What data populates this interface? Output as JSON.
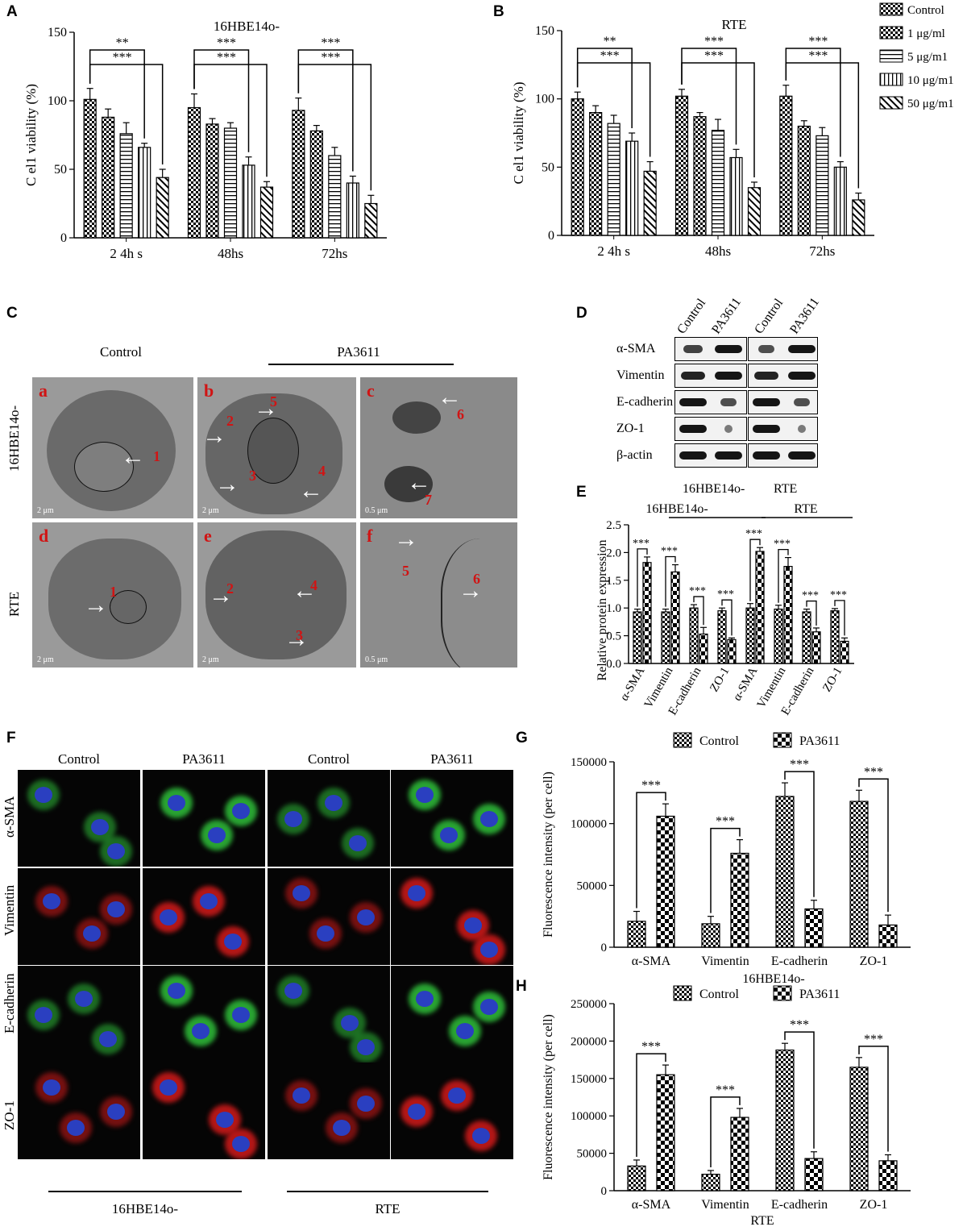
{
  "panels": {
    "A": "A",
    "B": "B",
    "C": "C",
    "D": "D",
    "E": "E",
    "F": "F",
    "G": "G",
    "H": "H"
  },
  "colors": {
    "em_dark": "#5f5f5f",
    "em_light": "#9a9a9a",
    "label_red": "#d01414",
    "if_green": "#2fbf3a",
    "if_red": "#d21a1a",
    "if_blue": "#2a3fc0"
  },
  "sig": "***",
  "sig2": "**",
  "legend_ab": [
    "Control",
    "1 μg/ml",
    "5 μg/m1",
    "10 μg/m1",
    "50 μg/m1"
  ],
  "legend_gh": [
    "Control",
    "PA3611"
  ],
  "chart_data": [
    {
      "id": "A",
      "type": "bar",
      "title": "16HBE14o-",
      "ylabel": "C el1 viability (%)",
      "xlabel": "",
      "categories": [
        "2 4h s",
        "48hs",
        "72hs"
      ],
      "ylim": [
        0,
        150
      ],
      "yticks": [
        0,
        50,
        100,
        150
      ],
      "series": [
        {
          "name": "Control",
          "values": [
            101,
            95,
            93
          ],
          "errors": [
            8,
            10,
            9
          ]
        },
        {
          "name": "1 μg/ml",
          "values": [
            88,
            83,
            78
          ],
          "errors": [
            6,
            4,
            4
          ]
        },
        {
          "name": "5 μg/m1",
          "values": [
            76,
            80,
            60
          ],
          "errors": [
            8,
            4,
            6
          ]
        },
        {
          "name": "10 μg/m1",
          "values": [
            66,
            53,
            40
          ],
          "errors": [
            3,
            6,
            5
          ]
        },
        {
          "name": "50 μg/m1",
          "values": [
            44,
            37,
            25
          ],
          "errors": [
            6,
            4,
            6
          ]
        }
      ],
      "annotations": [
        {
          "group": 0,
          "to": 4,
          "label": "***"
        },
        {
          "group": 0,
          "to": 3,
          "label": "**"
        },
        {
          "group": 1,
          "to": 4,
          "label": "***"
        },
        {
          "group": 1,
          "to": 3,
          "label": "***"
        },
        {
          "group": 2,
          "to": 4,
          "label": "***"
        },
        {
          "group": 2,
          "to": 3,
          "label": "***"
        }
      ]
    },
    {
      "id": "B",
      "type": "bar",
      "title": "RTE",
      "ylabel": "C el1 viability (%)",
      "xlabel": "",
      "categories": [
        "2 4h s",
        "48hs",
        "72hs"
      ],
      "ylim": [
        0,
        150
      ],
      "yticks": [
        0,
        50,
        100,
        150
      ],
      "series": [
        {
          "name": "Control",
          "values": [
            100,
            102,
            102
          ],
          "errors": [
            5,
            5,
            8
          ]
        },
        {
          "name": "1 μg/ml",
          "values": [
            90,
            87,
            80
          ],
          "errors": [
            5,
            3,
            4
          ]
        },
        {
          "name": "5 μg/m1",
          "values": [
            82,
            77,
            73
          ],
          "errors": [
            6,
            8,
            6
          ]
        },
        {
          "name": "10 μg/m1",
          "values": [
            69,
            57,
            50
          ],
          "errors": [
            6,
            6,
            4
          ]
        },
        {
          "name": "50 μg/m1",
          "values": [
            47,
            35,
            26
          ],
          "errors": [
            7,
            4,
            5
          ]
        }
      ],
      "annotations": [
        {
          "group": 0,
          "to": 4,
          "label": "***"
        },
        {
          "group": 0,
          "to": 3,
          "label": "**"
        },
        {
          "group": 1,
          "to": 4,
          "label": "***"
        },
        {
          "group": 1,
          "to": 3,
          "label": "***"
        },
        {
          "group": 2,
          "to": 4,
          "label": "***"
        },
        {
          "group": 2,
          "to": 3,
          "label": "***"
        }
      ]
    },
    {
      "id": "E",
      "type": "bar",
      "ylabel": "Relative protein expression",
      "group_labels": [
        "16HBE14o-",
        "RTE"
      ],
      "categories": [
        "α-SMA",
        "Vimentin",
        "E-cadherin",
        "ZO-1",
        "α-SMA",
        "Vimentin",
        "E-cadherin",
        "ZO-1"
      ],
      "ylim": [
        0,
        2.5
      ],
      "yticks": [
        0.0,
        0.5,
        1.0,
        1.5,
        2.0,
        2.5
      ],
      "series": [
        {
          "name": "Control",
          "values": [
            0.93,
            0.93,
            1.0,
            0.95,
            1.0,
            0.98,
            0.93,
            0.95
          ],
          "errors": [
            0.05,
            0.05,
            0.06,
            0.05,
            0.08,
            0.07,
            0.05,
            0.04
          ]
        },
        {
          "name": "PA3611",
          "values": [
            1.82,
            1.65,
            0.53,
            0.43,
            2.02,
            1.75,
            0.57,
            0.4
          ],
          "errors": [
            0.1,
            0.13,
            0.12,
            0.03,
            0.07,
            0.16,
            0.07,
            0.06
          ]
        }
      ],
      "annotation": "***"
    },
    {
      "id": "G",
      "type": "bar",
      "ylabel": "Fluorescence intensity (per cell)",
      "xlabel": "",
      "categories": [
        "α-SMA",
        "Vimentin",
        "E-cadherin",
        "ZO-1"
      ],
      "ylim": [
        0,
        150000
      ],
      "yticks": [
        0,
        50000,
        100000,
        150000
      ],
      "series": [
        {
          "name": "Control",
          "values": [
            21000,
            19000,
            122000,
            118000
          ],
          "errors": [
            8000,
            6000,
            11000,
            9000
          ]
        },
        {
          "name": "PA3611",
          "values": [
            106000,
            76000,
            31000,
            18000
          ],
          "errors": [
            10000,
            11000,
            7000,
            8000
          ]
        }
      ],
      "annotation": "***"
    },
    {
      "id": "H",
      "type": "bar",
      "title": "16HBE14o-",
      "ylabel": "Fluorescence intensity (per cell)",
      "xlabel": "RTE",
      "categories": [
        "α-SMA",
        "Vimentin",
        "E-cadherin",
        "ZO-1"
      ],
      "ylim": [
        0,
        250000
      ],
      "yticks": [
        0,
        50000,
        100000,
        150000,
        200000,
        250000
      ],
      "series": [
        {
          "name": "Control",
          "values": [
            33000,
            22000,
            188000,
            165000
          ],
          "errors": [
            8000,
            5000,
            9000,
            13000
          ]
        },
        {
          "name": "PA3611",
          "values": [
            155000,
            98000,
            43000,
            40000
          ],
          "errors": [
            13000,
            12000,
            9000,
            8000
          ]
        }
      ],
      "annotation": "***"
    }
  ],
  "panel_c": {
    "header_control": "Control",
    "header_pa": "PA3611",
    "row_labels": [
      "16HBE14o-",
      "RTE"
    ],
    "letters": [
      "a",
      "b",
      "c",
      "d",
      "e",
      "f"
    ],
    "scales": [
      "2 μm",
      "2 μm",
      "0.5 μm",
      "2 μm",
      "2 μm",
      "0.5 μm"
    ],
    "numbers": [
      "1",
      "2",
      "3",
      "4",
      "5",
      "6",
      "7"
    ]
  },
  "panel_d": {
    "columns": [
      "Control",
      "PA3611",
      "Control",
      "PA3611"
    ],
    "rows": [
      "α-SMA",
      "Vimentin",
      "E-cadherin",
      "ZO-1",
      "β-actin"
    ],
    "groups": [
      "16HBE14o-",
      "RTE"
    ]
  },
  "panel_f": {
    "columns": [
      "Control",
      "PA3611",
      "Control",
      "PA3611"
    ],
    "rows": [
      "α-SMA",
      "Vimentin",
      "E-cadherin",
      "ZO-1"
    ],
    "groups": [
      "16HBE14o-",
      "RTE"
    ]
  }
}
